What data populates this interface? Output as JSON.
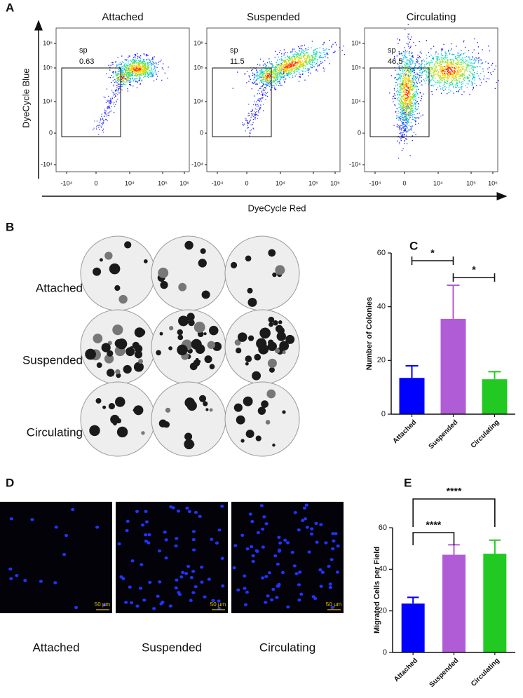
{
  "panels": {
    "A": {
      "label": "A",
      "y_axis_label": "DyeCycle Blue",
      "x_axis_label": "DyeCycle Red",
      "plots": [
        {
          "title": "Attached",
          "gate": "sp",
          "gate_value": 0.63
        },
        {
          "title": "Suspended",
          "gate": "sp",
          "gate_value": 11.5
        },
        {
          "title": "Circulating",
          "gate": "sp",
          "gate_value": 46.5
        }
      ],
      "y_tick_labels": [
        "10⁶",
        "10⁵",
        "10⁴",
        "0",
        "-10⁴"
      ],
      "x_tick_labels": [
        "-10⁴",
        "0",
        "10⁴",
        "10⁵",
        "10⁶"
      ]
    },
    "B": {
      "label": "B",
      "rows": [
        "Attached",
        "Suspended",
        "Circulating"
      ]
    },
    "D": {
      "label": "D",
      "images": [
        "Attached",
        "Suspended",
        "Circulating"
      ],
      "scale_bar": "50 µm"
    }
  },
  "chart_data": [
    {
      "type": "bar",
      "panel_label": "C",
      "ylabel": "Number of Colonies",
      "categories": [
        "Attached",
        "Suspended",
        "Circulating"
      ],
      "values": [
        13.5,
        35.5,
        13
      ],
      "errors": [
        4.5,
        12.5,
        2.8
      ],
      "colors": [
        "#0000ff",
        "#b05cd6",
        "#22c922"
      ],
      "ylim": [
        0,
        60
      ],
      "yticks": [
        0,
        20,
        40,
        60
      ],
      "significance": [
        {
          "pair": [
            "Attached",
            "Suspended"
          ],
          "label": "*"
        },
        {
          "pair": [
            "Suspended",
            "Circulating"
          ],
          "label": "*"
        }
      ]
    },
    {
      "type": "bar",
      "panel_label": "E",
      "ylabel": "Migrated Cells per Field",
      "categories": [
        "Attached",
        "Suspended",
        "Circulating"
      ],
      "values": [
        23.5,
        47,
        47.5
      ],
      "errors": [
        3,
        4.8,
        6.5
      ],
      "colors": [
        "#0000ff",
        "#b05cd6",
        "#22c922"
      ],
      "ylim": [
        0,
        60
      ],
      "yticks": [
        0,
        20,
        40,
        60
      ],
      "significance": [
        {
          "pair": [
            "Attached",
            "Suspended"
          ],
          "label": "****"
        },
        {
          "pair": [
            "Attached",
            "Circulating"
          ],
          "label": "****"
        }
      ]
    }
  ]
}
